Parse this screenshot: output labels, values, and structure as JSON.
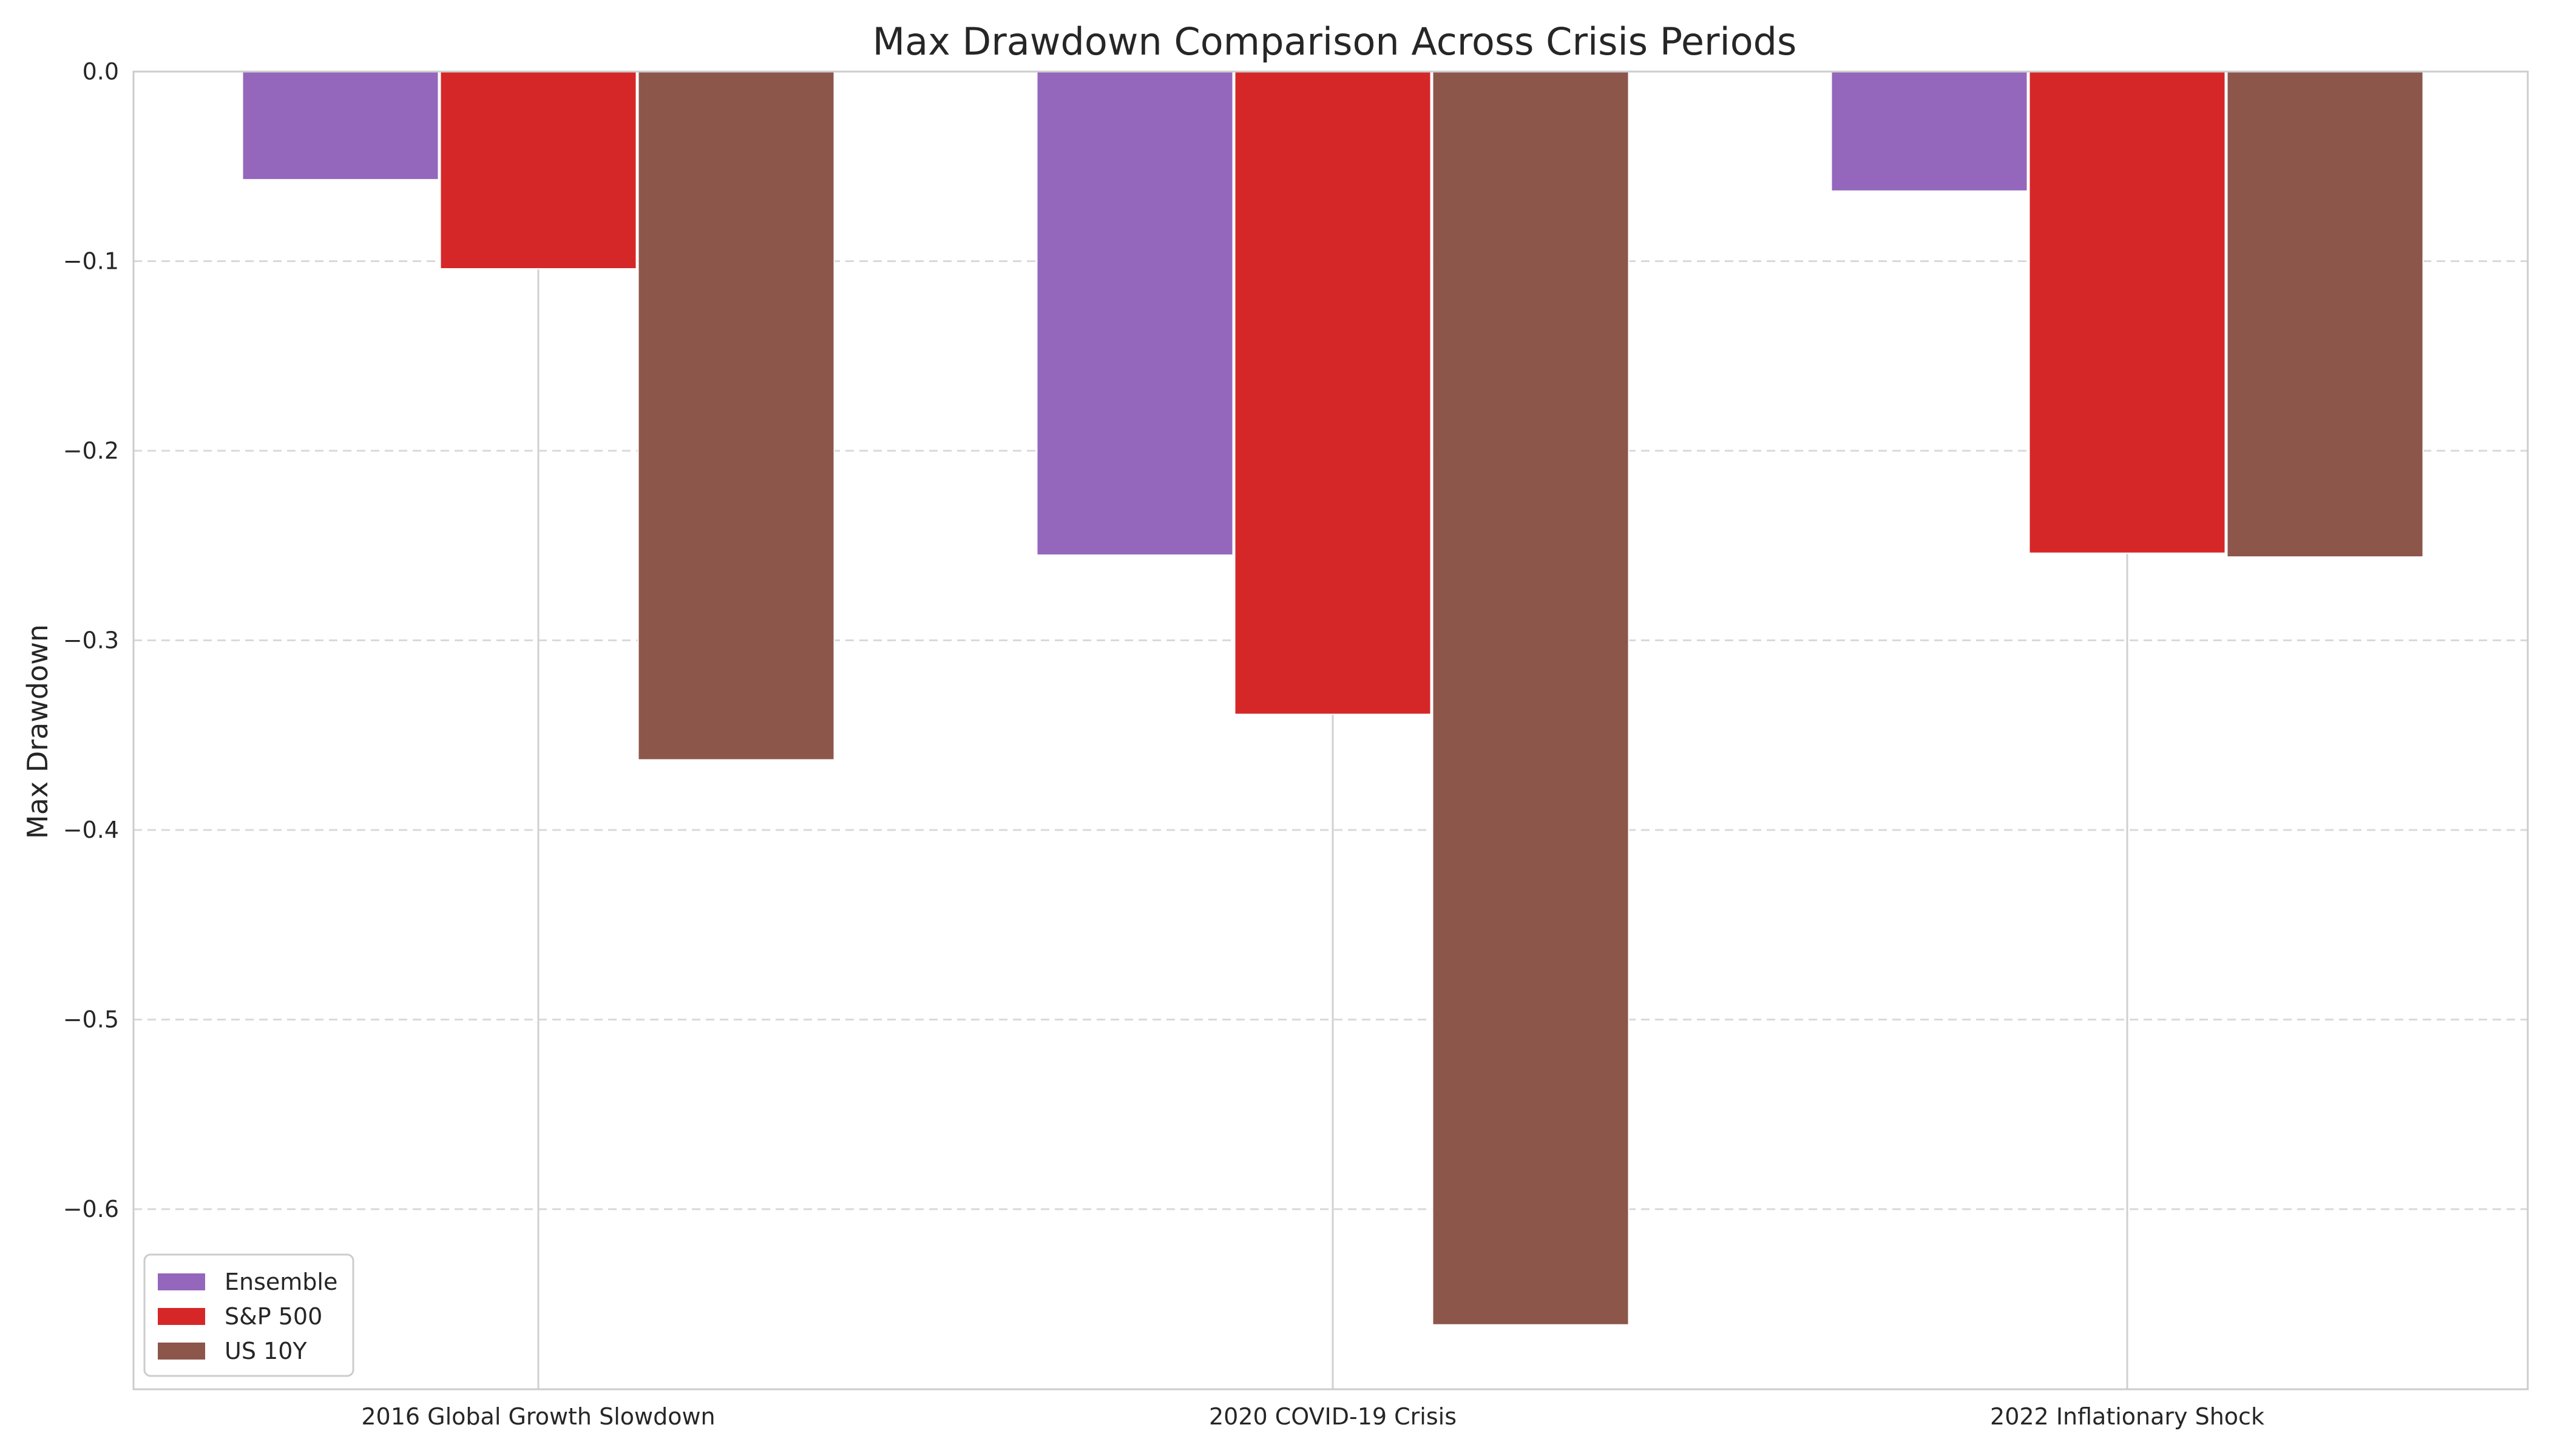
{
  "chart_data": {
    "type": "bar",
    "title": "Max Drawdown Comparison Across Crisis Periods",
    "xlabel": "",
    "ylabel": "Max Drawdown",
    "categories": [
      "2016 Global Growth Slowdown",
      "2020 COVID-19 Crisis",
      "2022 Inflationary Shock"
    ],
    "series": [
      {
        "name": "Ensemble",
        "color": "#9467bd",
        "values": [
          -0.057,
          -0.255,
          -0.063
        ]
      },
      {
        "name": "S&P 500",
        "color": "#d62728",
        "values": [
          -0.104,
          -0.339,
          -0.254
        ]
      },
      {
        "name": "US 10Y",
        "color": "#8c564b",
        "values": [
          -0.363,
          -0.661,
          -0.256
        ]
      }
    ],
    "ylim": [
      -0.695,
      0.0
    ],
    "yticks": [
      0.0,
      -0.1,
      -0.2,
      -0.3,
      -0.4,
      -0.5,
      -0.6
    ],
    "ytick_labels": [
      "0.0",
      "−0.1",
      "−0.2",
      "−0.3",
      "−0.4",
      "−0.5",
      "−0.6"
    ],
    "grid": {
      "y": true,
      "x": true,
      "y_style": "dashed"
    },
    "legend_position": "bottom-left"
  }
}
